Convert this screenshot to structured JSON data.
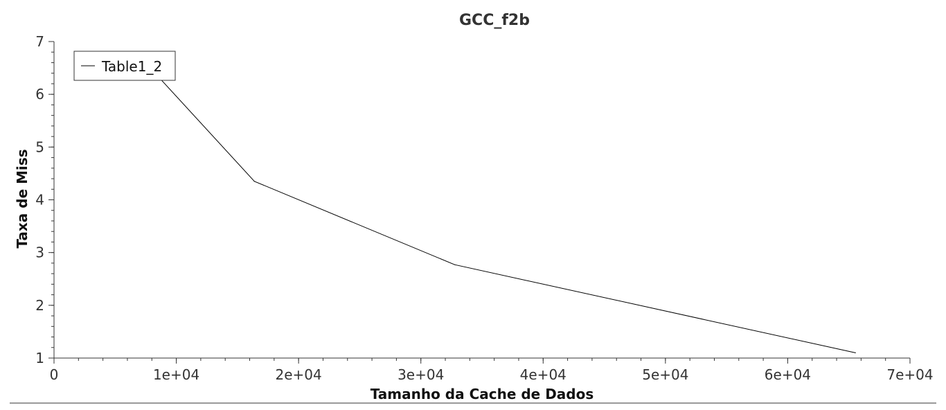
{
  "chart_data": {
    "type": "line",
    "title": "GCC_f2b",
    "xlabel": "Tamanho da Cache de Dados",
    "ylabel": "Taxa de Miss",
    "xlim": [
      0,
      70000
    ],
    "ylim": [
      1,
      7
    ],
    "x_ticks": [
      0,
      10000,
      20000,
      30000,
      40000,
      50000,
      60000,
      70000
    ],
    "x_tick_labels": [
      "0",
      "1e+04",
      "2e+04",
      "3e+04",
      "4e+04",
      "5e+04",
      "6e+04",
      "7e+04"
    ],
    "y_ticks": [
      1,
      2,
      3,
      4,
      5,
      6,
      7
    ],
    "y_tick_labels": [
      "1",
      "2",
      "3",
      "4",
      "5",
      "6",
      "7"
    ],
    "grid": false,
    "legend_position": "top-left",
    "series": [
      {
        "name": "Table1_2",
        "color": "#000000",
        "x": [
          8192,
          16384,
          32768,
          65536
        ],
        "y": [
          6.42,
          4.35,
          2.77,
          1.1
        ]
      }
    ]
  }
}
